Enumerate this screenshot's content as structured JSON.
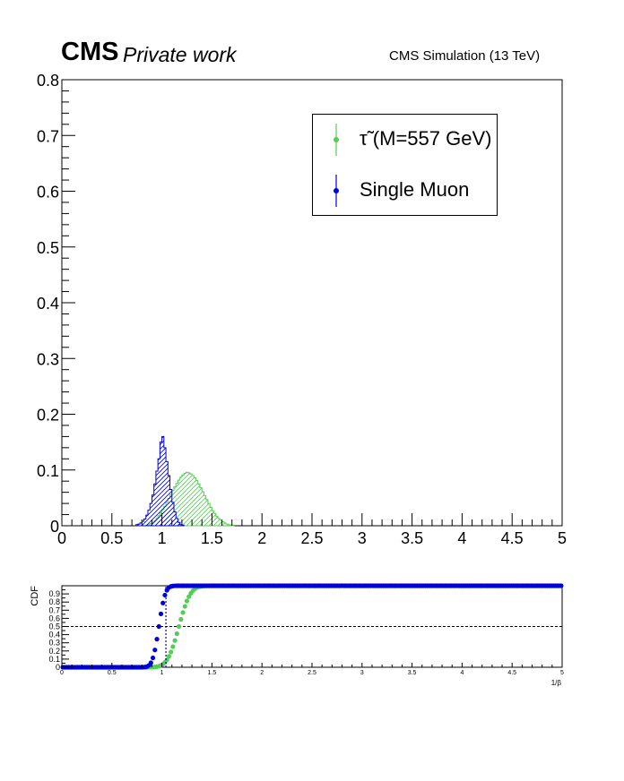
{
  "header": {
    "cms_label": "CMS",
    "private_label": "Private work",
    "simulation_label": "CMS Simulation (13 TeV)"
  },
  "legend": [
    {
      "label": "τ̃ (M=557 GeV)",
      "color": "#55cc55"
    },
    {
      "label": "Single Muon",
      "color": "#0000dd"
    }
  ],
  "chart_data": [
    {
      "type": "bar",
      "title": "",
      "xlabel": "",
      "ylabel": "",
      "xlim": [
        0,
        5
      ],
      "ylim": [
        0,
        0.8
      ],
      "xticks": [
        "0",
        "0.5",
        "1",
        "1.5",
        "2",
        "2.5",
        "3",
        "3.5",
        "4",
        "4.5",
        "5"
      ],
      "yticks": [
        "0",
        "0.1",
        "0.2",
        "0.3",
        "0.4",
        "0.5",
        "0.6",
        "0.7",
        "0.8"
      ],
      "bin_width": 0.02,
      "series": [
        {
          "name": "τ̃ (M=557 GeV)",
          "color": "#55cc55",
          "bin_start": 0.84,
          "values": [
            0.001,
            0.002,
            0.004,
            0.006,
            0.009,
            0.013,
            0.018,
            0.023,
            0.029,
            0.035,
            0.042,
            0.049,
            0.056,
            0.063,
            0.07,
            0.076,
            0.082,
            0.087,
            0.091,
            0.094,
            0.096,
            0.095,
            0.093,
            0.09,
            0.086,
            0.081,
            0.075,
            0.068,
            0.061,
            0.054,
            0.047,
            0.04,
            0.033,
            0.027,
            0.022,
            0.017,
            0.013,
            0.01,
            0.007,
            0.005,
            0.003,
            0.002,
            0.001,
            0.001
          ]
        },
        {
          "name": "Single Muon",
          "color": "#0000dd",
          "bin_start": 0.74,
          "values": [
            0.002,
            0.003,
            0.005,
            0.008,
            0.012,
            0.019,
            0.028,
            0.04,
            0.055,
            0.075,
            0.098,
            0.12,
            0.15,
            0.16,
            0.14,
            0.115,
            0.09,
            0.065,
            0.042,
            0.025,
            0.013,
            0.006,
            0.002,
            0.001
          ]
        }
      ]
    },
    {
      "type": "scatter",
      "title": "",
      "xlabel": "1/β",
      "ylabel": "CDF",
      "xlim": [
        0,
        5
      ],
      "ylim": [
        0,
        1
      ],
      "xticks": [
        "0",
        "0.5",
        "1",
        "1.5",
        "2",
        "2.5",
        "3",
        "3.5",
        "4",
        "4.5",
        "5"
      ],
      "yticks": [
        "0",
        "0.1",
        "0.2",
        "0.3",
        "0.4",
        "0.5",
        "0.6",
        "0.7",
        "0.8",
        "0.9"
      ],
      "reference_line_y": 0.5,
      "cut_line_x": 1.04,
      "series": [
        {
          "name": "τ̃ (M=557 GeV)",
          "color": "#55cc55",
          "cdf_mean": 1.17,
          "cdf_sigma": 0.09
        },
        {
          "name": "Single Muon",
          "color": "#0000dd",
          "cdf_mean": 0.97,
          "cdf_sigma": 0.05
        }
      ]
    }
  ]
}
